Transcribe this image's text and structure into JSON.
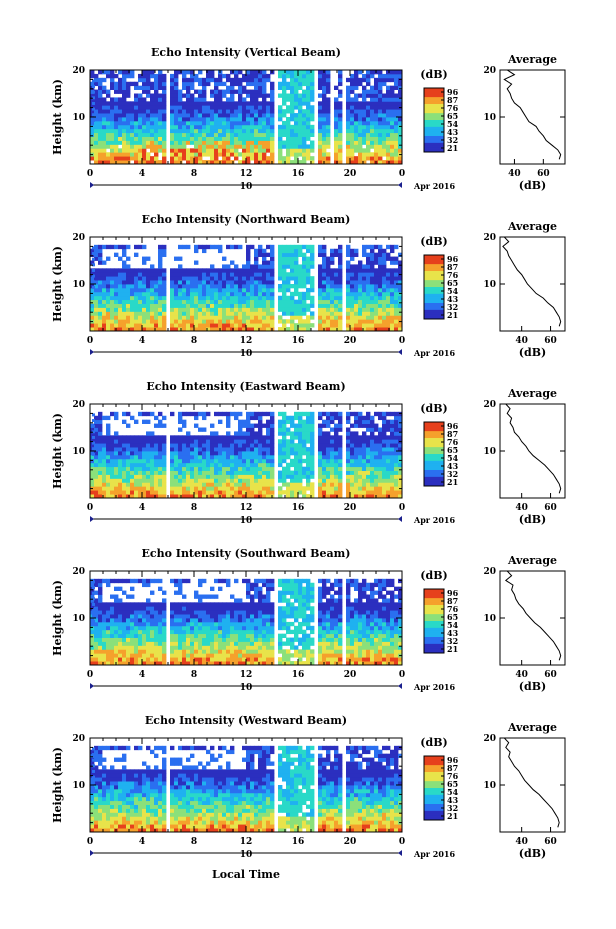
{
  "figure": {
    "xlabel": "Local Time",
    "date_label": "Apr 2016",
    "day_marker": "10"
  },
  "colorbar": {
    "unit": "(dB)",
    "ticks": [
      "96",
      "87",
      "76",
      "65",
      "54",
      "43",
      "32",
      "21"
    ]
  },
  "profile": {
    "title": "Average",
    "xlabel": "(dB)"
  },
  "colors": {
    "scale": [
      "#2b2fbf",
      "#2a6ff0",
      "#1fb1f0",
      "#29d9c8",
      "#8be07a",
      "#e8e34a",
      "#f5a12c",
      "#e6401c"
    ]
  },
  "chart_data": [
    {
      "type": "heatmap",
      "title": "Echo Intensity (Vertical Beam)",
      "ylabel": "Height (km)",
      "x_ticks": [
        "0",
        "4",
        "8",
        "12",
        "16",
        "20",
        "0"
      ],
      "y_ticks": [
        "20",
        "10"
      ],
      "xlim": [
        0,
        24
      ],
      "ylim": [
        0,
        20
      ],
      "gaps": [
        [
          5.8,
          6.1
        ],
        [
          14.2,
          14.6
        ],
        [
          17.2,
          17.4
        ],
        [
          18.5,
          18.7
        ],
        [
          19.3,
          19.6
        ]
      ],
      "cloud_top_km": [
        19,
        19,
        19,
        19,
        19,
        19,
        19,
        19
      ],
      "profile": {
        "xticks": [
          "40",
          "60"
        ],
        "xlim": [
          30,
          75
        ],
        "heights": [
          20,
          19,
          18,
          17,
          16,
          15,
          14,
          13,
          12,
          11,
          10,
          9,
          8,
          7,
          6,
          5,
          4,
          3,
          2,
          1
        ],
        "values": [
          35,
          40,
          33,
          38,
          35,
          37,
          38,
          40,
          44,
          46,
          48,
          50,
          55,
          57,
          60,
          62,
          66,
          70,
          72,
          71
        ]
      }
    },
    {
      "type": "heatmap",
      "title": "Echo Intensity (Northward Beam)",
      "ylabel": "Height (km)",
      "x_ticks": [
        "0",
        "4",
        "8",
        "12",
        "16",
        "20",
        "0"
      ],
      "y_ticks": [
        "20",
        "10"
      ],
      "xlim": [
        0,
        24
      ],
      "ylim": [
        0,
        20
      ],
      "gaps": [
        [
          0.8,
          1.0
        ],
        [
          5.8,
          6.1
        ],
        [
          14.2,
          14.6
        ],
        [
          17.2,
          17.4
        ],
        [
          19.3,
          19.6
        ]
      ],
      "cloud_top_km": [
        18,
        18,
        18,
        18,
        18,
        18,
        18,
        18
      ],
      "profile": {
        "xticks": [
          "40",
          "60"
        ],
        "xlim": [
          25,
          70
        ],
        "heights": [
          20,
          19,
          18,
          17,
          16,
          15,
          14,
          13,
          12,
          11,
          10,
          9,
          8,
          7,
          6,
          5,
          4,
          3,
          2,
          1
        ],
        "values": [
          28,
          31,
          27,
          30,
          31,
          33,
          35,
          37,
          40,
          42,
          44,
          47,
          50,
          55,
          58,
          62,
          64,
          66,
          67,
          66
        ]
      }
    },
    {
      "type": "heatmap",
      "title": "Echo Intensity (Eastward Beam)",
      "ylabel": "Height (km)",
      "x_ticks": [
        "0",
        "4",
        "8",
        "12",
        "16",
        "20",
        "0"
      ],
      "y_ticks": [
        "20",
        "10"
      ],
      "xlim": [
        0,
        24
      ],
      "ylim": [
        0,
        20
      ],
      "gaps": [
        [
          0.8,
          1.0
        ],
        [
          5.8,
          6.1
        ],
        [
          14.2,
          14.6
        ],
        [
          17.2,
          17.4
        ],
        [
          19.3,
          19.6
        ]
      ],
      "cloud_top_km": [
        18,
        18,
        18,
        18,
        18,
        18,
        18,
        18
      ],
      "profile": {
        "xticks": [
          "40",
          "60"
        ],
        "xlim": [
          25,
          70
        ],
        "heights": [
          20,
          19,
          18,
          17,
          16,
          15,
          14,
          13,
          12,
          11,
          10,
          9,
          8,
          7,
          6,
          5,
          4,
          3,
          2,
          1
        ],
        "values": [
          29,
          32,
          30,
          33,
          32,
          34,
          35,
          38,
          40,
          43,
          45,
          48,
          52,
          56,
          59,
          62,
          64,
          66,
          67,
          66
        ]
      }
    },
    {
      "type": "heatmap",
      "title": "Echo Intensity (Southward Beam)",
      "ylabel": "Height (km)",
      "x_ticks": [
        "0",
        "4",
        "8",
        "12",
        "16",
        "20",
        "0"
      ],
      "y_ticks": [
        "20",
        "10"
      ],
      "xlim": [
        0,
        24
      ],
      "ylim": [
        0,
        20
      ],
      "gaps": [
        [
          0.8,
          1.0
        ],
        [
          5.8,
          6.1
        ],
        [
          14.2,
          14.6
        ],
        [
          17.2,
          17.4
        ],
        [
          19.3,
          19.6
        ]
      ],
      "cloud_top_km": [
        18,
        18,
        18,
        18,
        18,
        18,
        18,
        18
      ],
      "profile": {
        "xticks": [
          "40",
          "60"
        ],
        "xlim": [
          25,
          70
        ],
        "heights": [
          20,
          19,
          18,
          17,
          16,
          15,
          14,
          13,
          12,
          11,
          10,
          9,
          8,
          7,
          6,
          5,
          4,
          3,
          2,
          1
        ],
        "values": [
          30,
          33,
          29,
          34,
          33,
          35,
          36,
          38,
          41,
          43,
          46,
          49,
          53,
          56,
          59,
          62,
          64,
          66,
          67,
          66
        ]
      }
    },
    {
      "type": "heatmap",
      "title": "Echo Intensity (Westward Beam)",
      "ylabel": "Height (km)",
      "x_ticks": [
        "0",
        "4",
        "8",
        "12",
        "16",
        "20",
        "0"
      ],
      "y_ticks": [
        "20",
        "10"
      ],
      "xlim": [
        0,
        24
      ],
      "ylim": [
        0,
        20
      ],
      "gaps": [
        [
          0.8,
          1.0
        ],
        [
          5.8,
          6.1
        ],
        [
          14.2,
          14.6
        ],
        [
          17.2,
          17.4
        ],
        [
          19.3,
          19.6
        ]
      ],
      "cloud_top_km": [
        18,
        18,
        18,
        18,
        18,
        18,
        18,
        18
      ],
      "profile": {
        "xticks": [
          "40",
          "60"
        ],
        "xlim": [
          25,
          70
        ],
        "heights": [
          20,
          19,
          18,
          17,
          16,
          15,
          14,
          13,
          12,
          11,
          10,
          9,
          8,
          7,
          6,
          5,
          4,
          3,
          2,
          1
        ],
        "values": [
          28,
          31,
          29,
          32,
          31,
          33,
          35,
          38,
          40,
          42,
          45,
          48,
          52,
          55,
          58,
          61,
          63,
          65,
          66,
          65
        ]
      }
    }
  ]
}
